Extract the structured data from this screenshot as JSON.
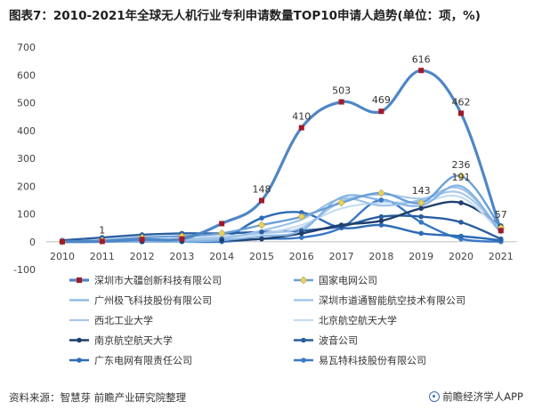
{
  "title": "图表7：2010-2021年全球无人机行业专利申请数量TOP10申请人趋势(单位：项，%)",
  "source": "资料来源：智慧芽 前瞻产业研究院整理",
  "brand": "前瞻经济学人APP",
  "chart_data": {
    "type": "line",
    "x": [
      "2010",
      "2011",
      "2012",
      "2013",
      "2014",
      "2015",
      "2016",
      "2017",
      "2018",
      "2019",
      "2020",
      "2021"
    ],
    "ylim": [
      -100,
      700
    ],
    "yticks": [
      "-100",
      "0",
      "100",
      "200",
      "300",
      "400",
      "500",
      "600",
      "700"
    ],
    "grid": false,
    "legend_position": "bottom",
    "series": [
      {
        "name": "深圳市大疆创新科技有限公司",
        "color": "#4f86c6",
        "marker": "square",
        "markerColor": "#a01a2a",
        "width": 3.2,
        "values": [
          0,
          1,
          8,
          10,
          65,
          148,
          410,
          503,
          469,
          616,
          462,
          40
        ]
      },
      {
        "name": "国家电网公司",
        "color": "#6a9fd8",
        "marker": "diamond",
        "markerColor": "#e8d060",
        "width": 2.4,
        "values": [
          0,
          5,
          15,
          20,
          30,
          60,
          90,
          140,
          175,
          140,
          236,
          50
        ]
      },
      {
        "name": "广州极飞科技股份有限公司",
        "color": "#86b4e3",
        "marker": "none",
        "markerColor": "#86b4e3",
        "width": 2.2,
        "values": [
          0,
          0,
          0,
          0,
          5,
          20,
          40,
          160,
          150,
          130,
          200,
          30
        ]
      },
      {
        "name": "深圳市道通智能航空技术有限公司",
        "color": "#9cc2ea",
        "marker": "none",
        "markerColor": "#9cc2ea",
        "width": 2.2,
        "values": [
          0,
          0,
          0,
          5,
          10,
          40,
          80,
          155,
          130,
          150,
          191,
          40
        ]
      },
      {
        "name": "西北工业大学",
        "color": "#a8c8ea",
        "marker": "none",
        "markerColor": "#a8c8ea",
        "width": 2.2,
        "values": [
          0,
          0,
          5,
          10,
          15,
          30,
          50,
          145,
          170,
          155,
          175,
          45
        ]
      },
      {
        "name": "北京航空航天大学",
        "color": "#c4dcf2",
        "marker": "none",
        "markerColor": "#c4dcf2",
        "width": 2.2,
        "values": [
          0,
          2,
          5,
          10,
          20,
          30,
          60,
          120,
          140,
          143,
          160,
          35
        ]
      },
      {
        "name": "南京航空航天大学",
        "color": "#1f3f6e",
        "marker": "circle",
        "markerColor": "#1f3f6e",
        "width": 2.4,
        "values": [
          0,
          0,
          0,
          2,
          5,
          10,
          30,
          60,
          75,
          120,
          140,
          57
        ]
      },
      {
        "name": "波音公司",
        "color": "#2a5ea0",
        "marker": "circle",
        "markerColor": "#2a5ea0",
        "width": 2.4,
        "values": [
          5,
          15,
          25,
          30,
          30,
          35,
          40,
          55,
          90,
          90,
          70,
          10
        ]
      },
      {
        "name": "广东电网有限责任公司",
        "color": "#2c6cb5",
        "marker": "circle",
        "markerColor": "#2c6cb5",
        "width": 2.4,
        "values": [
          0,
          0,
          5,
          5,
          10,
          85,
          105,
          50,
          60,
          30,
          20,
          5
        ]
      },
      {
        "name": "易瓦特科技股份有限公司",
        "color": "#3978c4",
        "marker": "circle",
        "markerColor": "#3978c4",
        "width": 2.4,
        "values": [
          0,
          0,
          0,
          0,
          0,
          10,
          15,
          50,
          150,
          70,
          10,
          0
        ]
      }
    ],
    "annotations": [
      {
        "series": 0,
        "index": 1,
        "text": "1"
      },
      {
        "series": 0,
        "index": 5,
        "text": "148"
      },
      {
        "series": 0,
        "index": 6,
        "text": "410"
      },
      {
        "series": 0,
        "index": 7,
        "text": "503"
      },
      {
        "series": 0,
        "index": 8,
        "text": "469"
      },
      {
        "series": 0,
        "index": 9,
        "text": "616"
      },
      {
        "series": 0,
        "index": 10,
        "text": "462"
      },
      {
        "series": 1,
        "index": 10,
        "text": "236"
      },
      {
        "series": 3,
        "index": 10,
        "text": "191"
      },
      {
        "series": 5,
        "index": 9,
        "text": "143"
      },
      {
        "series": 6,
        "index": 11,
        "text": "57"
      }
    ]
  }
}
